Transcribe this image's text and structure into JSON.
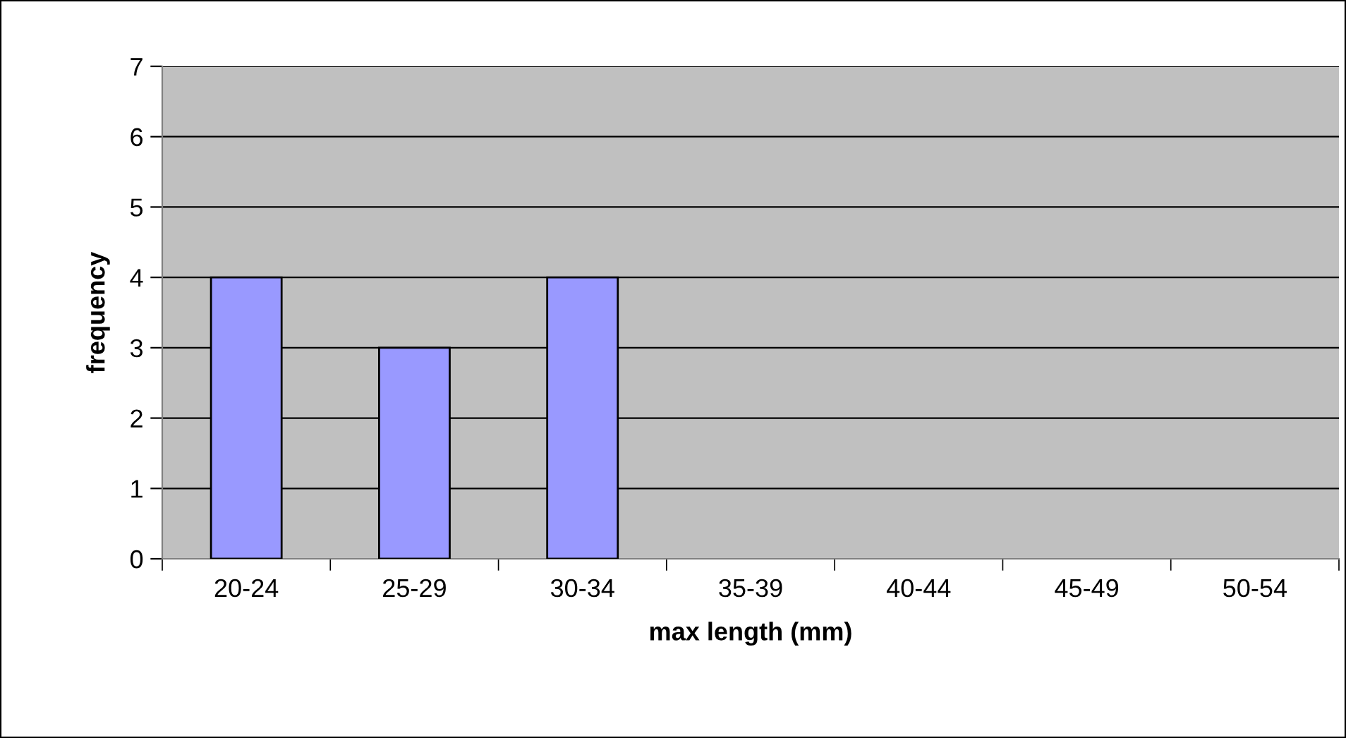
{
  "chart_data": {
    "type": "bar",
    "xlabel": "max length (mm)",
    "ylabel": "frequency",
    "categories": [
      "20-24",
      "25-29",
      "30-34",
      "35-39",
      "40-44",
      "45-49",
      "50-54"
    ],
    "values": [
      4,
      3,
      4,
      0,
      0,
      0,
      0
    ],
    "color": "#9999ff",
    "ylim": [
      0,
      7
    ],
    "yticks": [
      0,
      1,
      2,
      3,
      4,
      5,
      6,
      7
    ],
    "grid": "y",
    "legend": false
  }
}
